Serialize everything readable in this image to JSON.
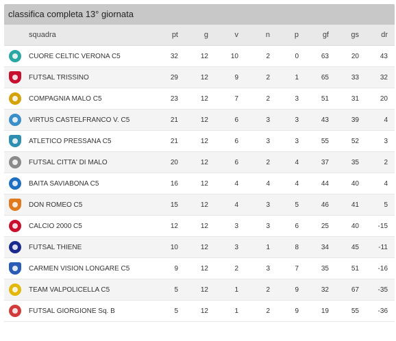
{
  "title": "classifica completa 13° giornata",
  "columns": {
    "squadra": "squadra",
    "pt": "pt",
    "g": "g",
    "v": "v",
    "n": "n",
    "p": "p",
    "gf": "gf",
    "gs": "gs",
    "dr": "dr"
  },
  "rows": [
    {
      "team": "CUORE CELTIC VERONA C5",
      "pt": "32",
      "g": "12",
      "v": "10",
      "n": "2",
      "p": "0",
      "gf": "63",
      "gs": "20",
      "dr": "43",
      "logo_color": "#2aa6a3"
    },
    {
      "team": "FUTSAL TRISSINO",
      "pt": "29",
      "g": "12",
      "v": "9",
      "n": "2",
      "p": "1",
      "gf": "65",
      "gs": "33",
      "dr": "32",
      "logo_color": "#c8102e"
    },
    {
      "team": "COMPAGNIA MALO C5",
      "pt": "23",
      "g": "12",
      "v": "7",
      "n": "2",
      "p": "3",
      "gf": "51",
      "gs": "31",
      "dr": "20",
      "logo_color": "#d4a20a"
    },
    {
      "team": "VIRTUS CASTELFRANCO V. C5",
      "pt": "21",
      "g": "12",
      "v": "6",
      "n": "3",
      "p": "3",
      "gf": "43",
      "gs": "39",
      "dr": "4",
      "logo_color": "#3a8fc8"
    },
    {
      "team": "ATLETICO PRESSANA C5",
      "pt": "21",
      "g": "12",
      "v": "6",
      "n": "3",
      "p": "3",
      "gf": "55",
      "gs": "52",
      "dr": "3",
      "logo_color": "#2f8fb0"
    },
    {
      "team": "FUTSAL CITTA' DI MALO",
      "pt": "20",
      "g": "12",
      "v": "6",
      "n": "2",
      "p": "4",
      "gf": "37",
      "gs": "35",
      "dr": "2",
      "logo_color": "#8a8a8a"
    },
    {
      "team": "BAITA SAVIABONA C5",
      "pt": "16",
      "g": "12",
      "v": "4",
      "n": "4",
      "p": "4",
      "gf": "44",
      "gs": "40",
      "dr": "4",
      "logo_color": "#1f6fc1"
    },
    {
      "team": "DON ROMEO C5",
      "pt": "15",
      "g": "12",
      "v": "4",
      "n": "3",
      "p": "5",
      "gf": "46",
      "gs": "41",
      "dr": "5",
      "logo_color": "#e07a1f"
    },
    {
      "team": "CALCIO 2000 C5",
      "pt": "12",
      "g": "12",
      "v": "3",
      "n": "3",
      "p": "6",
      "gf": "25",
      "gs": "40",
      "dr": "-15",
      "logo_color": "#c8102e"
    },
    {
      "team": "FUTSAL THIENE",
      "pt": "10",
      "g": "12",
      "v": "3",
      "n": "1",
      "p": "8",
      "gf": "34",
      "gs": "45",
      "dr": "-11",
      "logo_color": "#1a2a8c"
    },
    {
      "team": "CARMEN VISION LONGARE C5",
      "pt": "9",
      "g": "12",
      "v": "2",
      "n": "3",
      "p": "7",
      "gf": "35",
      "gs": "51",
      "dr": "-16",
      "logo_color": "#2a5bb5"
    },
    {
      "team": "TEAM VALPOLICELLA C5",
      "pt": "5",
      "g": "12",
      "v": "1",
      "n": "2",
      "p": "9",
      "gf": "32",
      "gs": "67",
      "dr": "-35",
      "logo_color": "#e2b80e"
    },
    {
      "team": "FUTSAL GIORGIONE Sq. B",
      "pt": "5",
      "g": "12",
      "v": "1",
      "n": "2",
      "p": "9",
      "gf": "19",
      "gs": "55",
      "dr": "-36",
      "logo_color": "#d23b3b"
    }
  ]
}
